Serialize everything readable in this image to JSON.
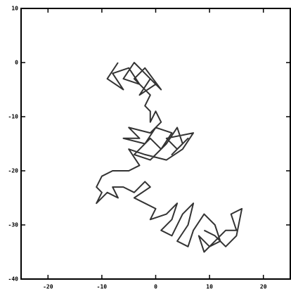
{
  "chart_data": {
    "type": "line",
    "x": [
      -7,
      -9,
      -6,
      -8,
      -5,
      -3,
      -6,
      -4,
      -2,
      0,
      -3,
      -1,
      1,
      -2,
      -4,
      -1,
      -2,
      -1,
      -1,
      0,
      1,
      -1,
      -5,
      -3,
      -6,
      -2,
      0,
      3,
      1,
      -1,
      -4,
      -1,
      2,
      4,
      5,
      3,
      6,
      4,
      2,
      7,
      5,
      2,
      -2,
      -5,
      -3,
      -5,
      -8,
      -10,
      -11,
      -10,
      -11,
      -9,
      -7,
      -8,
      -6,
      -4,
      -2,
      -1,
      -4,
      -2,
      0,
      -1,
      2,
      4,
      3,
      1,
      3,
      5,
      7,
      6,
      4,
      6,
      7,
      9,
      11,
      12,
      10,
      8,
      9,
      11,
      13,
      15,
      14,
      16,
      15,
      13,
      11,
      9
    ],
    "y": [
      0,
      -3,
      -5,
      -2,
      -1,
      -4,
      -3,
      0,
      -2,
      -4,
      -6,
      -3,
      -5,
      -1,
      -3,
      -6,
      -8,
      -9,
      -11,
      -9,
      -11,
      -13,
      -12,
      -14,
      -14,
      -15,
      -12,
      -13,
      -16,
      -14,
      -17,
      -18,
      -15,
      -12,
      -15,
      -17,
      -14,
      -16,
      -14,
      -13,
      -16,
      -18,
      -17,
      -16,
      -19,
      -20,
      -20,
      -21,
      -23,
      -24,
      -26,
      -24,
      -25,
      -23,
      -23,
      -24,
      -22,
      -23,
      -25,
      -26,
      -27,
      -29,
      -28,
      -26,
      -29,
      -31,
      -32,
      -28,
      -26,
      -30,
      -33,
      -34,
      -31,
      -28,
      -30,
      -33,
      -34,
      -32,
      -35,
      -33,
      -31,
      -31,
      -28,
      -27,
      -32,
      -34,
      -32,
      -31
    ],
    "color": "#333333",
    "xlim": [
      -25,
      25
    ],
    "ylim": [
      -40,
      10
    ],
    "xticks": [
      -20,
      -10,
      0,
      10,
      20
    ],
    "yticks": [
      -40,
      -30,
      -20,
      -10,
      0,
      10
    ]
  }
}
